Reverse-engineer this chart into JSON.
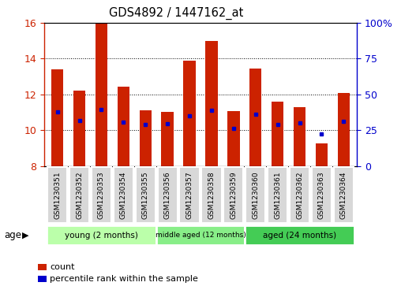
{
  "title": "GDS4892 / 1447162_at",
  "samples": [
    "GSM1230351",
    "GSM1230352",
    "GSM1230353",
    "GSM1230354",
    "GSM1230355",
    "GSM1230356",
    "GSM1230357",
    "GSM1230358",
    "GSM1230359",
    "GSM1230360",
    "GSM1230361",
    "GSM1230362",
    "GSM1230363",
    "GSM1230364"
  ],
  "count_values": [
    13.4,
    12.2,
    16.0,
    12.45,
    11.1,
    11.0,
    13.9,
    15.0,
    11.05,
    13.45,
    11.6,
    11.3,
    9.25,
    12.1
  ],
  "percentile_values": [
    11.0,
    10.55,
    11.15,
    10.45,
    10.3,
    10.35,
    10.8,
    11.1,
    10.1,
    10.9,
    10.3,
    10.4,
    9.8,
    10.5
  ],
  "ylim": [
    8,
    16
  ],
  "yticks": [
    8,
    10,
    12,
    14,
    16
  ],
  "right_yticks_vals": [
    8,
    10,
    12,
    14,
    16
  ],
  "right_yticks_labels": [
    "0",
    "25",
    "50",
    "75",
    "100%"
  ],
  "bar_color": "#cc2200",
  "dot_color": "#0000cc",
  "groups": [
    {
      "label": "young (2 months)",
      "start": 0,
      "end": 5
    },
    {
      "label": "middle aged (12 months)",
      "start": 5,
      "end": 9
    },
    {
      "label": "aged (24 months)",
      "start": 9,
      "end": 14
    }
  ],
  "group_colors": [
    "#bbffaa",
    "#88ee88",
    "#44cc55"
  ],
  "group_label": "age",
  "legend_count_label": "count",
  "legend_percentile_label": "percentile rank within the sample",
  "bar_bottom": 8.0,
  "bar_width": 0.55
}
